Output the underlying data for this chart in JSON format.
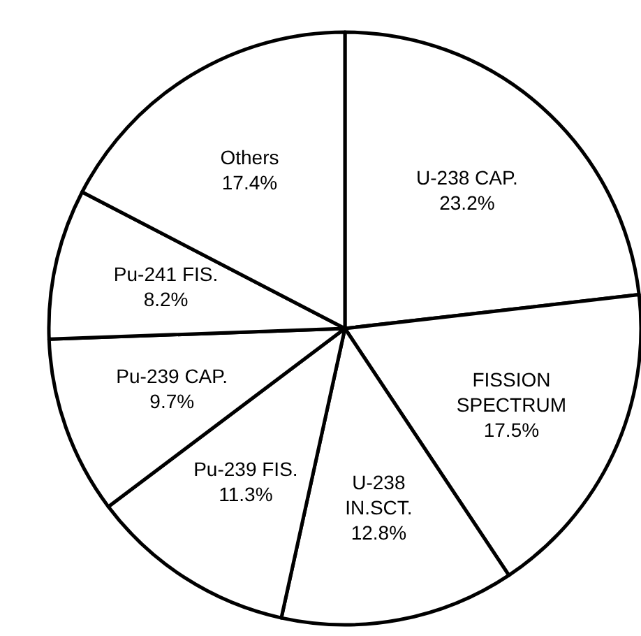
{
  "chart_data": {
    "type": "pie",
    "categories": [
      "U-238 CAP.",
      "FISSION SPECTRUM",
      "U-238 IN.SCT.",
      "Pu-239 FIS.",
      "Pu-239 CAP.",
      "Pu-241 FIS.",
      "Others"
    ],
    "values": [
      23.2,
      17.5,
      12.8,
      11.3,
      9.7,
      8.2,
      17.4
    ],
    "value_labels": [
      "23.2%",
      "17.5%",
      "12.8%",
      "11.3%",
      "9.7%",
      "8.2%",
      "17.4%"
    ],
    "colors": [
      "#ffffff",
      "#ffffff",
      "#ffffff",
      "#ffffff",
      "#ffffff",
      "#ffffff",
      "#ffffff"
    ]
  }
}
